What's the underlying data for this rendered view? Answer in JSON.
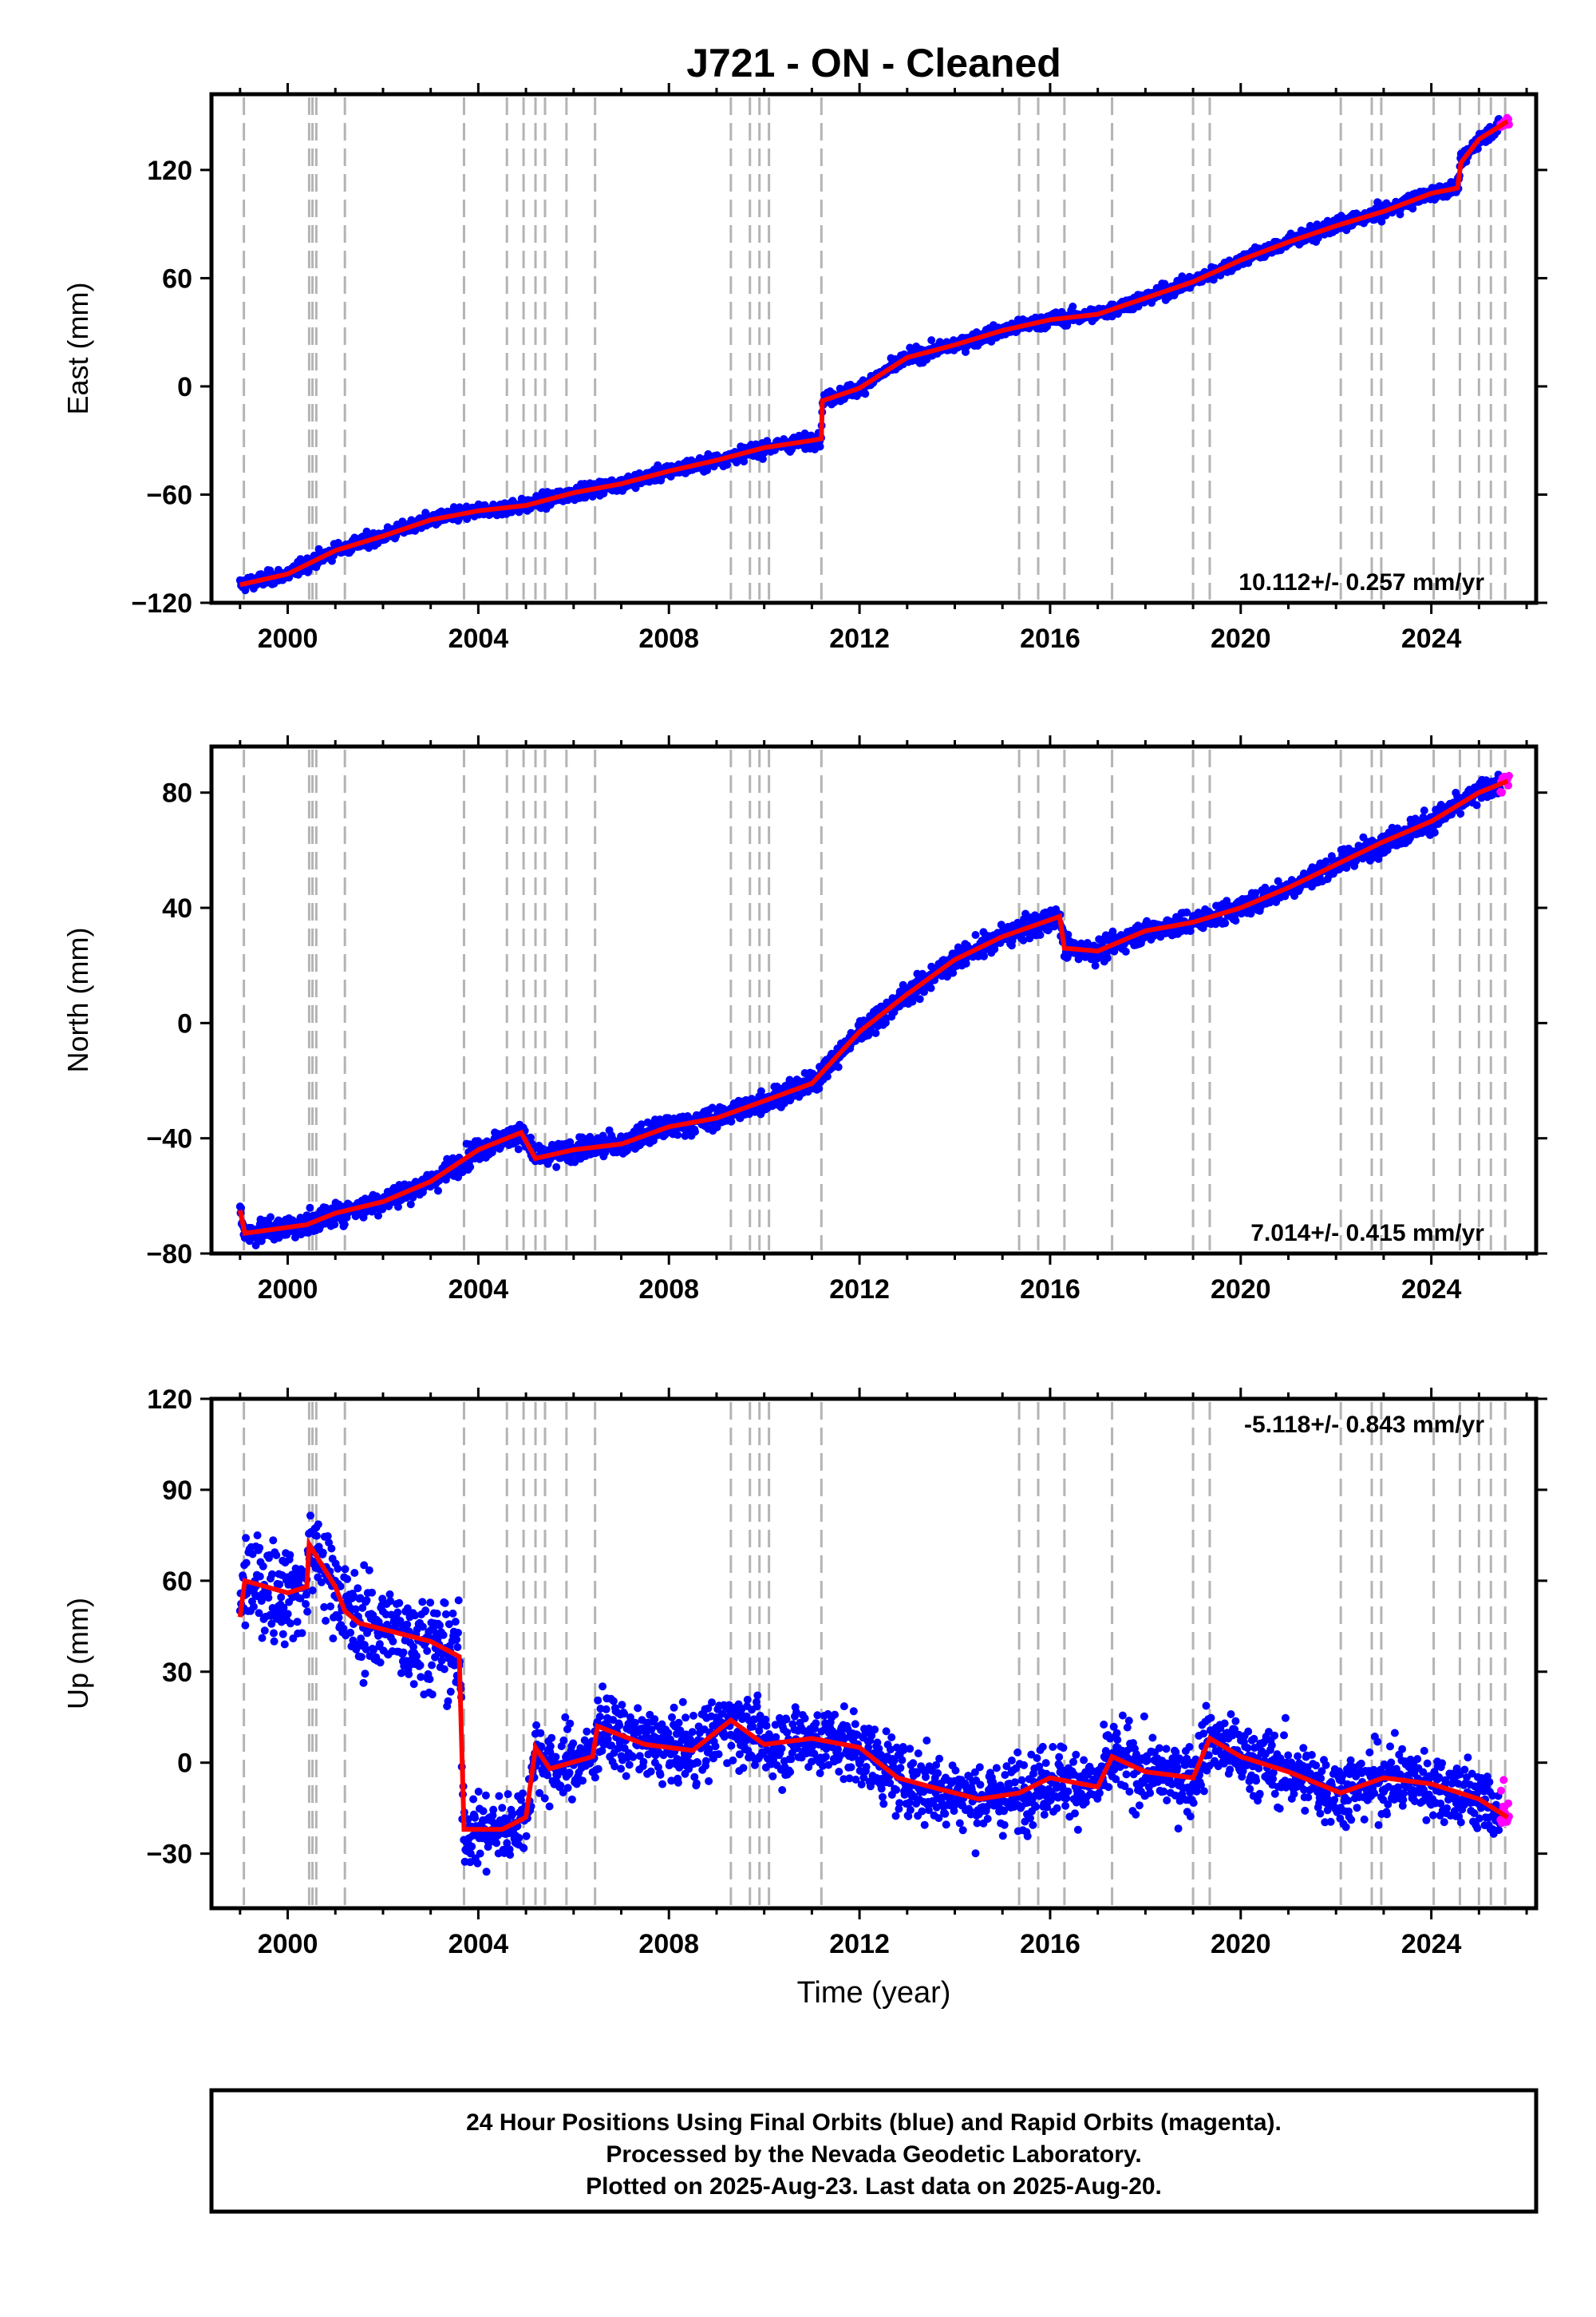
{
  "title": "J721  - ON - Cleaned",
  "footer": {
    "line1": "24 Hour Positions Using Final Orbits (blue) and Rapid Orbits (magenta).",
    "line2": "Processed by the Nevada Geodetic Laboratory.",
    "line3": "Plotted on 2025-Aug-23. Last data on 2025-Aug-20."
  },
  "colors": {
    "final": "#0000ff",
    "rapid": "#ff00ff",
    "model": "#ff0000",
    "events": "#b4b4b4",
    "frame": "#000000"
  },
  "chart_data": [
    {
      "type": "scatter",
      "id": "east",
      "ylabel": "East (mm)",
      "xlabel": "",
      "xlim": [
        1998.4,
        2026.2
      ],
      "ylim": [
        -120,
        162
      ],
      "yticks": [
        -120,
        -60,
        0,
        60,
        120
      ],
      "xticks": [
        2000,
        2004,
        2008,
        2012,
        2016,
        2020,
        2024
      ],
      "rate_label": "10.112+/- 0.257 mm/yr",
      "rate_pos": "bottom-right",
      "noise_mm": 3,
      "final_range": [
        1999.0,
        2025.45
      ],
      "rapid_range": [
        2025.45,
        2025.63
      ],
      "model": [
        [
          1999.0,
          -110
        ],
        [
          2000.0,
          -104
        ],
        [
          2001.0,
          -91
        ],
        [
          2002.0,
          -83
        ],
        [
          2003.0,
          -74
        ],
        [
          2004.0,
          -69
        ],
        [
          2005.0,
          -66
        ],
        [
          2006.0,
          -59
        ],
        [
          2007.0,
          -54
        ],
        [
          2008.0,
          -47
        ],
        [
          2009.0,
          -41
        ],
        [
          2010.0,
          -34
        ],
        [
          2011.0,
          -30
        ],
        [
          2011.2,
          -29
        ],
        [
          2011.22,
          -8
        ],
        [
          2012.0,
          -1
        ],
        [
          2013.0,
          16
        ],
        [
          2014.0,
          23
        ],
        [
          2015.0,
          31
        ],
        [
          2016.0,
          37
        ],
        [
          2017.0,
          40
        ],
        [
          2018.0,
          49
        ],
        [
          2019.0,
          58
        ],
        [
          2020.0,
          70
        ],
        [
          2021.0,
          80
        ],
        [
          2022.0,
          89
        ],
        [
          2023.0,
          97
        ],
        [
          2024.0,
          107
        ],
        [
          2024.55,
          110
        ],
        [
          2024.62,
          124
        ],
        [
          2025.0,
          137
        ],
        [
          2025.6,
          147
        ]
      ],
      "events": [
        1999.08,
        2000.45,
        2000.52,
        2000.6,
        2001.2,
        2003.7,
        2004.6,
        2004.95,
        2005.2,
        2005.4,
        2005.85,
        2006.45,
        2009.3,
        2009.7,
        2009.9,
        2010.1,
        2011.2,
        2015.35,
        2015.75,
        2016.3,
        2017.3,
        2019.0,
        2019.35,
        2022.1,
        2022.75,
        2022.95,
        2024.05,
        2024.6,
        2025.0,
        2025.25,
        2025.55
      ]
    },
    {
      "type": "scatter",
      "id": "north",
      "ylabel": "North (mm)",
      "xlabel": "",
      "xlim": [
        1998.4,
        2026.2
      ],
      "ylim": [
        -80,
        96
      ],
      "yticks": [
        -80,
        -40,
        0,
        40,
        80
      ],
      "xticks": [
        2000,
        2004,
        2008,
        2012,
        2016,
        2020,
        2024
      ],
      "rate_label": "7.014+/- 0.415 mm/yr",
      "rate_pos": "bottom-right",
      "noise_mm": 3,
      "final_range": [
        1999.0,
        2025.45
      ],
      "rapid_range": [
        2025.45,
        2025.63
      ],
      "model": [
        [
          1999.0,
          -65
        ],
        [
          1999.1,
          -73
        ],
        [
          2000.4,
          -70
        ],
        [
          2001.0,
          -66
        ],
        [
          2002.0,
          -62
        ],
        [
          2003.0,
          -55
        ],
        [
          2004.0,
          -44
        ],
        [
          2004.9,
          -38
        ],
        [
          2005.2,
          -47
        ],
        [
          2006.0,
          -44
        ],
        [
          2007.0,
          -42
        ],
        [
          2008.0,
          -36
        ],
        [
          2009.0,
          -33
        ],
        [
          2010.0,
          -27
        ],
        [
          2011.0,
          -21
        ],
        [
          2012.0,
          -3
        ],
        [
          2013.0,
          10
        ],
        [
          2014.0,
          22
        ],
        [
          2015.0,
          30
        ],
        [
          2016.2,
          37
        ],
        [
          2016.3,
          26
        ],
        [
          2017.0,
          25
        ],
        [
          2018.0,
          32
        ],
        [
          2019.0,
          35
        ],
        [
          2020.0,
          40
        ],
        [
          2021.0,
          47
        ],
        [
          2022.0,
          55
        ],
        [
          2023.0,
          63
        ],
        [
          2024.0,
          70
        ],
        [
          2025.0,
          80
        ],
        [
          2025.6,
          84
        ]
      ],
      "events": [
        1999.08,
        2000.45,
        2000.52,
        2000.6,
        2001.2,
        2003.7,
        2004.6,
        2004.95,
        2005.2,
        2005.4,
        2005.85,
        2006.45,
        2009.3,
        2009.7,
        2009.9,
        2010.1,
        2011.2,
        2015.35,
        2015.75,
        2016.3,
        2017.3,
        2019.0,
        2019.35,
        2022.1,
        2022.75,
        2022.95,
        2024.05,
        2024.6,
        2025.0,
        2025.25,
        2025.55
      ]
    },
    {
      "type": "scatter",
      "id": "up",
      "ylabel": "Up (mm)",
      "xlabel": "Time (year)",
      "xlim": [
        1998.4,
        2026.2
      ],
      "ylim": [
        -48,
        120
      ],
      "yticks": [
        -30,
        0,
        30,
        60,
        90,
        120
      ],
      "xticks": [
        2000,
        2004,
        2008,
        2012,
        2016,
        2020,
        2024
      ],
      "rate_label": "-5.118+/- 0.843 mm/yr",
      "rate_pos": "top-right",
      "noise_mm": 9,
      "final_range": [
        1999.0,
        2025.45
      ],
      "rapid_range": [
        2025.45,
        2025.63
      ],
      "model": [
        [
          1999.0,
          48
        ],
        [
          1999.1,
          60
        ],
        [
          2000.0,
          56
        ],
        [
          2000.4,
          58
        ],
        [
          2000.45,
          72
        ],
        [
          2001.0,
          58
        ],
        [
          2001.2,
          50
        ],
        [
          2001.5,
          46
        ],
        [
          2002.0,
          44
        ],
        [
          2003.0,
          40
        ],
        [
          2003.6,
          35
        ],
        [
          2003.7,
          -22
        ],
        [
          2004.5,
          -22
        ],
        [
          2005.0,
          -18
        ],
        [
          2005.2,
          5
        ],
        [
          2005.5,
          -2
        ],
        [
          2006.4,
          2
        ],
        [
          2006.5,
          12
        ],
        [
          2007.5,
          6
        ],
        [
          2008.5,
          4
        ],
        [
          2009.3,
          14
        ],
        [
          2010.0,
          6
        ],
        [
          2011.0,
          8
        ],
        [
          2012.0,
          5
        ],
        [
          2012.8,
          -5
        ],
        [
          2013.5,
          -8
        ],
        [
          2014.5,
          -12
        ],
        [
          2015.35,
          -10
        ],
        [
          2016.0,
          -5
        ],
        [
          2017.0,
          -8
        ],
        [
          2017.3,
          2
        ],
        [
          2018.0,
          -3
        ],
        [
          2019.0,
          -5
        ],
        [
          2019.35,
          8
        ],
        [
          2020.0,
          2
        ],
        [
          2021.0,
          -3
        ],
        [
          2022.1,
          -10
        ],
        [
          2023.0,
          -5
        ],
        [
          2024.0,
          -7
        ],
        [
          2025.0,
          -12
        ],
        [
          2025.6,
          -18
        ]
      ],
      "events": [
        1999.08,
        2000.45,
        2000.52,
        2000.6,
        2001.2,
        2003.7,
        2004.6,
        2004.95,
        2005.2,
        2005.4,
        2005.85,
        2006.45,
        2009.3,
        2009.7,
        2009.9,
        2010.1,
        2011.2,
        2015.35,
        2015.75,
        2016.3,
        2017.3,
        2019.0,
        2019.35,
        2022.1,
        2022.75,
        2022.95,
        2024.05,
        2024.6,
        2025.0,
        2025.25,
        2025.55
      ]
    }
  ]
}
